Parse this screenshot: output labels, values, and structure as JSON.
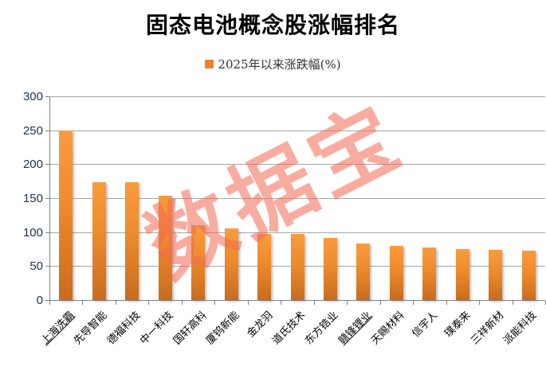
{
  "title": "固态电池概念股涨幅排名",
  "legend": {
    "label": "2025年以来涨跌幅(%)"
  },
  "watermark": {
    "text": "数据宝"
  },
  "colors": {
    "bar_top": "#F99C3D",
    "bar_mid": "#EE8A2C",
    "bar_bottom": "#C86C1E",
    "legend_marker": "#E8832E",
    "grid_line": "#A6A6A6",
    "axis_line": "#808080",
    "y_label": "#1F3050",
    "x_label": "#000000",
    "watermark": "rgba(242,104,82,0.55)"
  },
  "chart_data": {
    "type": "bar",
    "title": "固态电池概念股涨幅排名",
    "categories": [
      "上海洗霸",
      "先导智能",
      "德福科技",
      "中一科技",
      "国轩高科",
      "厦钨新能",
      "金龙羽",
      "道氏技术",
      "东方锆业",
      "赣锋锂业",
      "天赐材料",
      "信宇人",
      "璞泰来",
      "三祥新材",
      "派能科技"
    ],
    "series": [
      {
        "name": "2025年以来涨跌幅(%)",
        "values": [
          250,
          174,
          173,
          153,
          110,
          106,
          97,
          97,
          92,
          83,
          80,
          77,
          75,
          74,
          73
        ]
      }
    ],
    "underlined_categories": [
      "上海洗霸",
      "赣锋锂业"
    ],
    "xlabel": "",
    "ylabel": "",
    "ylim": [
      0,
      300
    ],
    "yticks": [
      0,
      50,
      100,
      150,
      200,
      250,
      300
    ],
    "grid": true,
    "legend_position": "top-center",
    "x_label_rotation_deg": 45
  }
}
